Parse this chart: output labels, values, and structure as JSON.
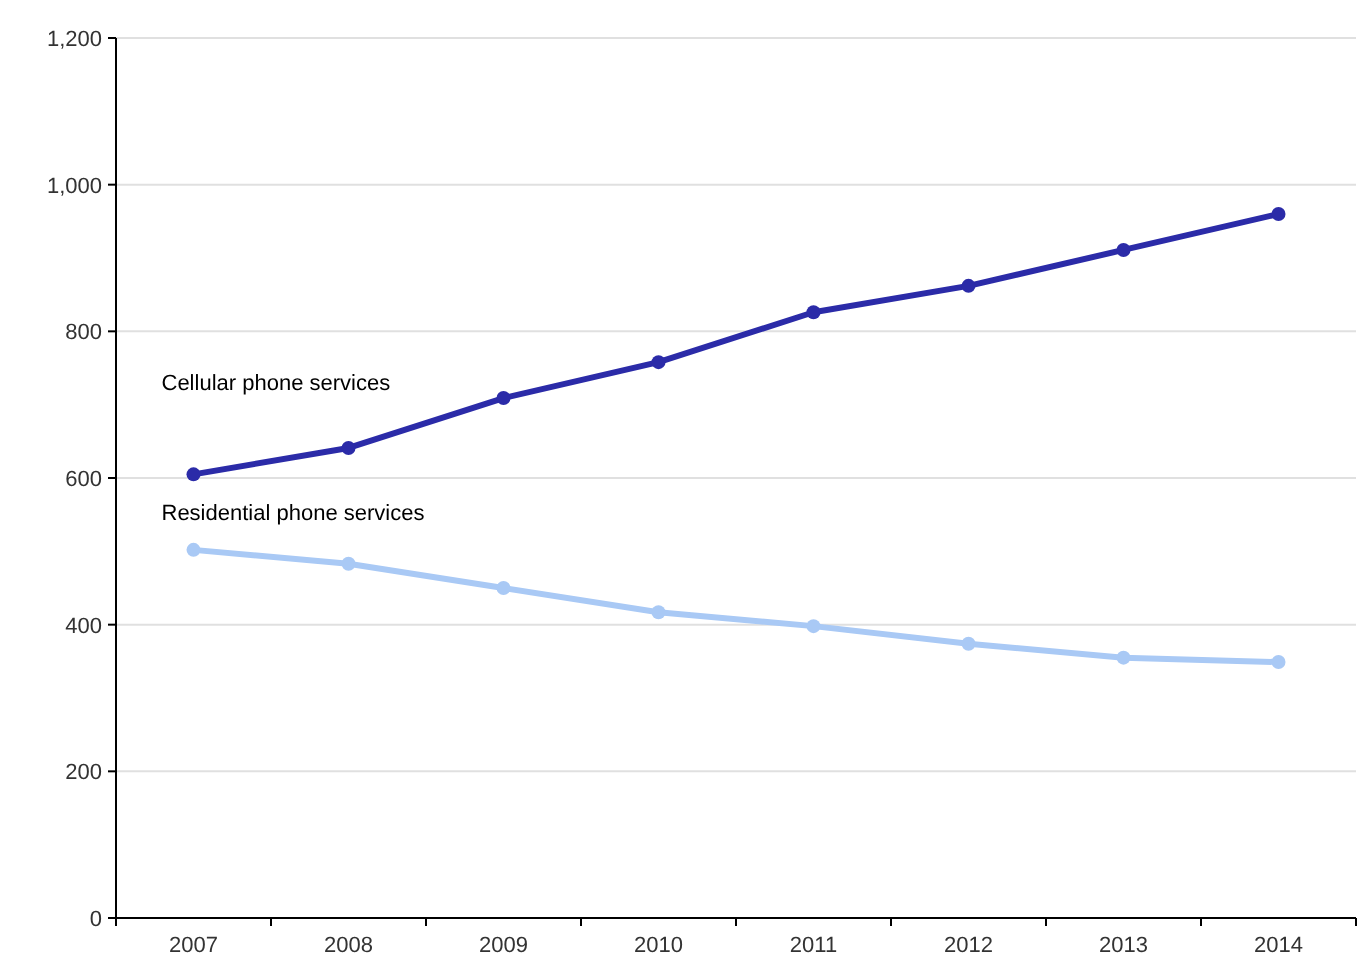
{
  "chart_data": {
    "type": "line",
    "categories": [
      "2007",
      "2008",
      "2009",
      "2010",
      "2011",
      "2012",
      "2013",
      "2014"
    ],
    "series": [
      {
        "name": "Cellular phone services",
        "color": "#2b2ba8",
        "values": [
          605,
          641,
          709,
          758,
          826,
          862,
          911,
          960
        ]
      },
      {
        "name": "Residential phone services",
        "color": "#a9c9f5",
        "values": [
          502,
          483,
          450,
          417,
          398,
          374,
          355,
          349
        ]
      }
    ],
    "ylim": [
      0,
      1200
    ],
    "yticks": [
      0,
      200,
      400,
      600,
      800,
      {
        "value": 1000,
        "label": "1,000"
      },
      {
        "value": 1200,
        "label": "1,200"
      }
    ],
    "grid": "y",
    "marker": "circle",
    "line_style": "solid"
  }
}
